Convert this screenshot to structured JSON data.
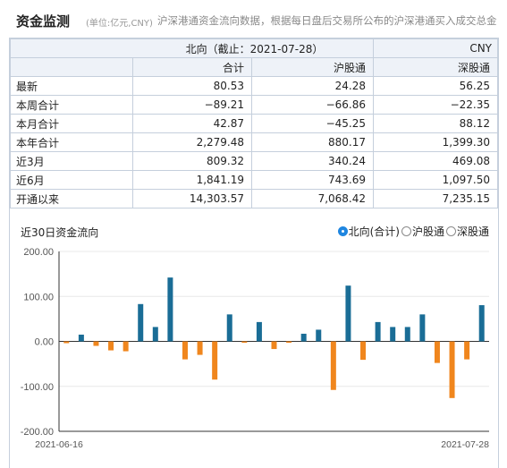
{
  "header": {
    "title": "资金监测",
    "unit": "(单位:亿元,CNY)",
    "description": "沪深港通资金流向数据，根据每日盘后交易所公布的沪深港通买入成交总金"
  },
  "table": {
    "caption": "北向（截止：2021-07-28）",
    "currency": "CNY",
    "columns": [
      "",
      "合计",
      "沪股通",
      "深股通"
    ],
    "rows": [
      {
        "label": "最新",
        "values": [
          "80.53",
          "24.28",
          "56.25"
        ]
      },
      {
        "label": "本周合计",
        "values": [
          "−89.21",
          "−66.86",
          "−22.35"
        ]
      },
      {
        "label": "本月合计",
        "values": [
          "42.87",
          "−45.25",
          "88.12"
        ]
      },
      {
        "label": "本年合计",
        "values": [
          "2,279.48",
          "880.17",
          "1,399.30"
        ]
      },
      {
        "label": "近3月",
        "values": [
          "809.32",
          "340.24",
          "469.08"
        ]
      },
      {
        "label": "近6月",
        "values": [
          "1,841.19",
          "743.69",
          "1,097.50"
        ]
      },
      {
        "label": "开通以来",
        "values": [
          "14,303.57",
          "7,068.42",
          "7,235.15"
        ]
      }
    ]
  },
  "chart_section": {
    "title": "近30日资金流向",
    "options": [
      {
        "label": "北向(合计)",
        "selected": true
      },
      {
        "label": "沪股通",
        "selected": false
      },
      {
        "label": "深股通",
        "selected": false
      }
    ]
  },
  "colors": {
    "positive": "#1a6d96",
    "negative": "#f0861d",
    "axis": "#333333",
    "grid": "#e8e8e8"
  },
  "chart_data": {
    "type": "bar",
    "title": "",
    "xlabel": "",
    "ylabel": "",
    "ylim": [
      -200,
      200
    ],
    "yticks": [
      200,
      100,
      0,
      -100,
      -200
    ],
    "ytick_labels": [
      "200.00",
      "100.00",
      "0.00",
      "-100.00",
      "-200.00"
    ],
    "x_start_label": "2021-06-16",
    "x_end_label": "2021-07-28",
    "series": [
      {
        "name": "北向(合计)",
        "values": [
          -4,
          15,
          -10,
          -20,
          -22,
          83,
          32,
          142,
          -40,
          -30,
          -85,
          60,
          -3,
          43,
          -17,
          -3,
          17,
          26,
          -108,
          124,
          -41,
          43,
          32,
          32,
          60,
          -48,
          -126,
          -40,
          80.53
        ]
      }
    ]
  }
}
